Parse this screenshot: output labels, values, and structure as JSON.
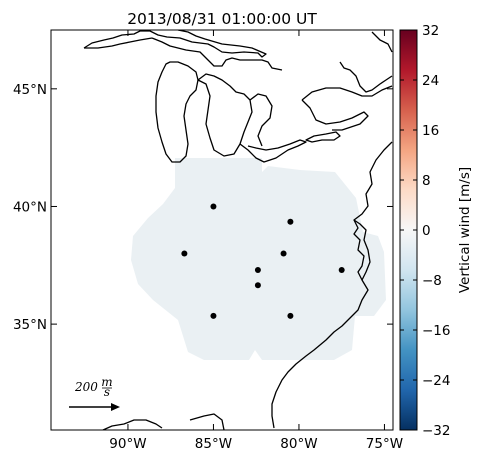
{
  "title": "2013/08/31 01:00:00 UT",
  "map": {
    "lon_range": [
      -94.5,
      -74.5
    ],
    "lat_range": [
      30.5,
      47.5
    ],
    "x_ticks": [
      {
        "value": -90,
        "label": "90°W"
      },
      {
        "value": -85,
        "label": "85°W"
      },
      {
        "value": -80,
        "label": "80°W"
      },
      {
        "value": -75,
        "label": "75°W"
      }
    ],
    "y_ticks": [
      {
        "value": 35,
        "label": "35°N"
      },
      {
        "value": 40,
        "label": "40°N"
      },
      {
        "value": 45,
        "label": "45°N"
      }
    ],
    "coastline_color": "#000000",
    "coverage_color": "#eaf0f3",
    "stations": [
      {
        "lon": -85.0,
        "lat": 40.0
      },
      {
        "lon": -80.5,
        "lat": 39.35
      },
      {
        "lon": -86.7,
        "lat": 38.0
      },
      {
        "lon": -82.4,
        "lat": 37.3
      },
      {
        "lon": -80.9,
        "lat": 38.0
      },
      {
        "lon": -82.4,
        "lat": 36.65
      },
      {
        "lon": -77.5,
        "lat": 37.3
      },
      {
        "lon": -85.0,
        "lat": 35.35
      },
      {
        "lon": -80.5,
        "lat": 35.35
      }
    ],
    "scale_arrow": {
      "value": 200,
      "label_number": "200",
      "label_unit_num": "m",
      "label_unit_den": "s"
    }
  },
  "colorbar": {
    "label": "Vertical wind [m/s]",
    "min": -32,
    "max": 32,
    "ticks": [
      "32",
      "24",
      "16",
      "8",
      "0",
      "−8",
      "−16",
      "−24",
      "−32"
    ],
    "tick_values": [
      32,
      24,
      16,
      8,
      0,
      -8,
      -16,
      -24,
      -32
    ],
    "colormap": "RdBu_r",
    "stops": [
      "#053061",
      "#2166ac",
      "#4393c3",
      "#92c5de",
      "#d1e5f0",
      "#f7f7f7",
      "#fddbc7",
      "#f4a582",
      "#d6604d",
      "#b2182b",
      "#67001f"
    ]
  }
}
